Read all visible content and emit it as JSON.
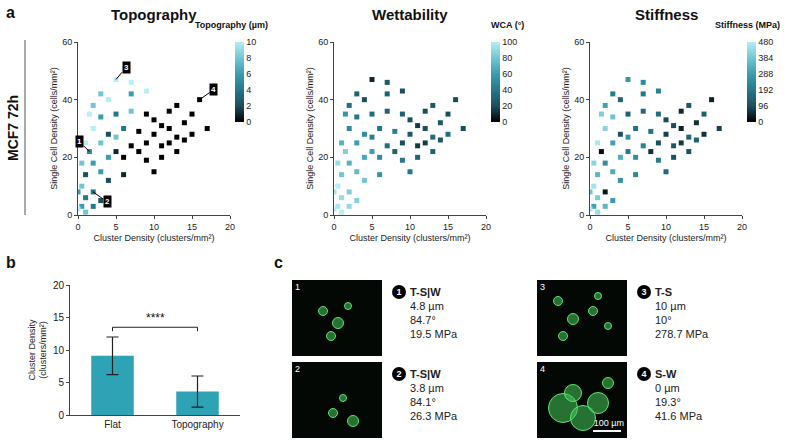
{
  "row_label": "MCF7 72h",
  "chart_data": [
    {
      "panel": "a",
      "type": "scatter",
      "title": "Topography",
      "marker": "square",
      "x_label": "Cluster Density (clusters/mm²)",
      "y_label": "Single Cell Density (cells/mm²)",
      "xlim": [
        0,
        20
      ],
      "xticks": [
        0,
        5,
        10,
        15,
        20
      ],
      "ylim": [
        0,
        60
      ],
      "yticks": [
        0,
        20,
        40,
        60
      ],
      "x": [
        8,
        9,
        10,
        11,
        12,
        13,
        9,
        10,
        11,
        12,
        14,
        15,
        16,
        8,
        7,
        10,
        13,
        12,
        14,
        11,
        9,
        17,
        13,
        15,
        6,
        0.5,
        1,
        0.5,
        1,
        2,
        2,
        1.5,
        3,
        2,
        3,
        5,
        3,
        4,
        4,
        5,
        6,
        3,
        4,
        0.5,
        1,
        2,
        7,
        7,
        5,
        6,
        0,
        0,
        1,
        2,
        3,
        7,
        9,
        4,
        5,
        1.5
      ],
      "y": [
        22,
        25,
        28,
        24,
        30,
        27,
        19,
        33,
        20,
        25,
        32,
        35,
        40,
        29,
        24,
        15,
        22,
        36,
        26,
        31,
        35,
        30,
        38,
        28,
        20,
        3,
        6,
        10,
        14,
        8,
        18,
        22,
        25,
        30,
        34,
        47,
        42,
        40,
        28,
        22,
        30,
        15,
        12,
        18,
        25,
        38,
        46,
        42,
        35,
        14,
        8,
        2,
        1,
        3,
        5,
        36,
        43,
        20,
        27,
        35
      ],
      "color_values": [
        0,
        0,
        0,
        0,
        0,
        0,
        0,
        0,
        0,
        0,
        0,
        0,
        0,
        0,
        0,
        0,
        0,
        0,
        0,
        0,
        0,
        0,
        0,
        0,
        0,
        6,
        4,
        8,
        2,
        3.8,
        6,
        4.8,
        8,
        10,
        6,
        10,
        8,
        10,
        2,
        1,
        4,
        6,
        2,
        8,
        10,
        8,
        10,
        6,
        4,
        1,
        6,
        10,
        8,
        4,
        2,
        8,
        10,
        6,
        8,
        10
      ],
      "color_title": "Topography (µm)",
      "color_range": [
        0,
        10
      ],
      "color_ticks": [
        0,
        2,
        4,
        6,
        8,
        10
      ],
      "annotations": [
        {
          "text": "1",
          "x": 1.5,
          "y": 22
        },
        {
          "text": "2",
          "x": 2,
          "y": 8
        },
        {
          "text": "3",
          "x": 5,
          "y": 47
        },
        {
          "text": "4",
          "x": 16,
          "y": 40
        }
      ]
    },
    {
      "type": "scatter",
      "title": "Wettability",
      "marker": "square",
      "x_label": "Cluster Density (clusters/mm²)",
      "y_label": "Single Cell Density (cells/mm²)",
      "xlim": [
        0,
        20
      ],
      "xticks": [
        0,
        5,
        10,
        15,
        20
      ],
      "ylim": [
        0,
        60
      ],
      "yticks": [
        0,
        20,
        40,
        60
      ],
      "x": [
        8,
        9,
        10,
        11,
        12,
        13,
        9,
        10,
        11,
        12,
        14,
        15,
        16,
        8,
        7,
        10,
        13,
        12,
        14,
        11,
        9,
        17,
        13,
        15,
        6,
        0.5,
        1,
        0.5,
        1,
        2,
        2,
        1.5,
        3,
        2,
        3,
        5,
        3,
        4,
        4,
        5,
        6,
        3,
        4,
        0.5,
        1,
        2,
        7,
        7,
        5,
        6,
        0,
        0,
        1,
        2,
        3,
        7,
        9,
        4,
        5,
        1.5
      ],
      "y": [
        22,
        25,
        28,
        24,
        30,
        27,
        19,
        33,
        20,
        25,
        32,
        35,
        40,
        29,
        24,
        15,
        22,
        36,
        26,
        31,
        35,
        30,
        38,
        28,
        20,
        3,
        6,
        10,
        14,
        8,
        18,
        22,
        25,
        30,
        34,
        47,
        42,
        40,
        28,
        22,
        30,
        15,
        12,
        18,
        25,
        38,
        46,
        42,
        35,
        14,
        8,
        2,
        1,
        3,
        5,
        36,
        43,
        20,
        27,
        35
      ],
      "color_values": [
        30,
        20,
        25,
        15,
        20,
        35,
        40,
        20,
        30,
        15,
        25,
        20,
        19.3,
        45,
        35,
        40,
        30,
        20,
        25,
        15,
        30,
        20,
        25,
        35,
        50,
        95,
        90,
        100,
        80,
        84.1,
        70,
        84.7,
        60,
        50,
        40,
        10,
        30,
        20,
        50,
        60,
        40,
        75,
        80,
        90,
        70,
        35,
        25,
        30,
        35,
        55,
        95,
        100,
        100,
        90,
        85,
        30,
        20,
        65,
        45,
        55
      ],
      "color_title": "WCA (°)",
      "color_range": [
        0,
        100
      ],
      "color_ticks": [
        0,
        20,
        40,
        60,
        80,
        100
      ]
    },
    {
      "type": "scatter",
      "title": "Stiffness",
      "marker": "square",
      "x_label": "Cluster Density (clusters/mm²)",
      "y_label": "Single Cell Density (cells/mm²)",
      "xlim": [
        0,
        20
      ],
      "xticks": [
        0,
        5,
        10,
        15,
        20
      ],
      "ylim": [
        0,
        60
      ],
      "yticks": [
        0,
        20,
        40,
        60
      ],
      "x": [
        8,
        9,
        10,
        11,
        12,
        13,
        9,
        10,
        11,
        12,
        14,
        15,
        16,
        8,
        7,
        10,
        13,
        12,
        14,
        11,
        9,
        17,
        13,
        15,
        6,
        0.5,
        1,
        0.5,
        1,
        2,
        2,
        1.5,
        3,
        2,
        3,
        5,
        3,
        4,
        4,
        5,
        6,
        3,
        4,
        0.5,
        1,
        2,
        7,
        7,
        5,
        6,
        0,
        0,
        1,
        2,
        3,
        7,
        9,
        4,
        5,
        1.5
      ],
      "y": [
        22,
        25,
        28,
        24,
        30,
        27,
        19,
        33,
        20,
        25,
        32,
        35,
        40,
        29,
        24,
        15,
        22,
        36,
        26,
        31,
        35,
        30,
        38,
        28,
        20,
        3,
        6,
        10,
        14,
        8,
        18,
        22,
        25,
        30,
        34,
        47,
        42,
        40,
        28,
        22,
        30,
        15,
        12,
        18,
        25,
        38,
        46,
        42,
        35,
        14,
        8,
        2,
        1,
        3,
        5,
        36,
        43,
        20,
        27,
        35
      ],
      "color_values": [
        60,
        100,
        80,
        120,
        40,
        150,
        200,
        90,
        110,
        70,
        60,
        130,
        41.6,
        180,
        220,
        160,
        100,
        50,
        140,
        90,
        170,
        80,
        120,
        60,
        250,
        300,
        400,
        450,
        350,
        26.3,
        250,
        19.5,
        300,
        420,
        380,
        278.7,
        200,
        150,
        100,
        200,
        180,
        320,
        260,
        420,
        460,
        300,
        240,
        190,
        140,
        230,
        380,
        470,
        440,
        350,
        280,
        160,
        210,
        330,
        270,
        400
      ],
      "color_title": "Stiffness (MPa)",
      "color_range": [
        0,
        480
      ],
      "color_ticks": [
        0,
        96,
        192,
        288,
        384,
        480
      ]
    },
    {
      "panel": "b",
      "type": "bar",
      "categories": [
        "Flat",
        "Topography"
      ],
      "values": [
        9.1,
        3.6
      ],
      "errors": [
        2.9,
        2.4
      ],
      "color": "#2ea3b5",
      "y_label": "Cluster Density (clusters/mm²)",
      "ylim": [
        0,
        20
      ],
      "yticks": [
        0,
        5,
        10,
        15,
        20
      ],
      "significance": {
        "label": "****",
        "y": 13.5
      }
    }
  ],
  "panel_c": {
    "panel": "c",
    "images": [
      {
        "number": "1",
        "condition": "T-S|W",
        "topography": "4.8 µm",
        "wca": "84.7°",
        "stiffness": "19.5 MPa"
      },
      {
        "number": "2",
        "condition": "T-S|W",
        "topography": "3.8 µm",
        "wca": "84.1°",
        "stiffness": "26.3 MPa"
      },
      {
        "number": "3",
        "condition": "T-S",
        "topography": "10 µm",
        "wca": "10°",
        "stiffness": "278.7 MPa"
      },
      {
        "number": "4",
        "condition": "S-W",
        "topography": "0 µm",
        "wca": "19.3°",
        "stiffness": "41.6 MPa",
        "scale_bar": "100 µm"
      }
    ]
  }
}
